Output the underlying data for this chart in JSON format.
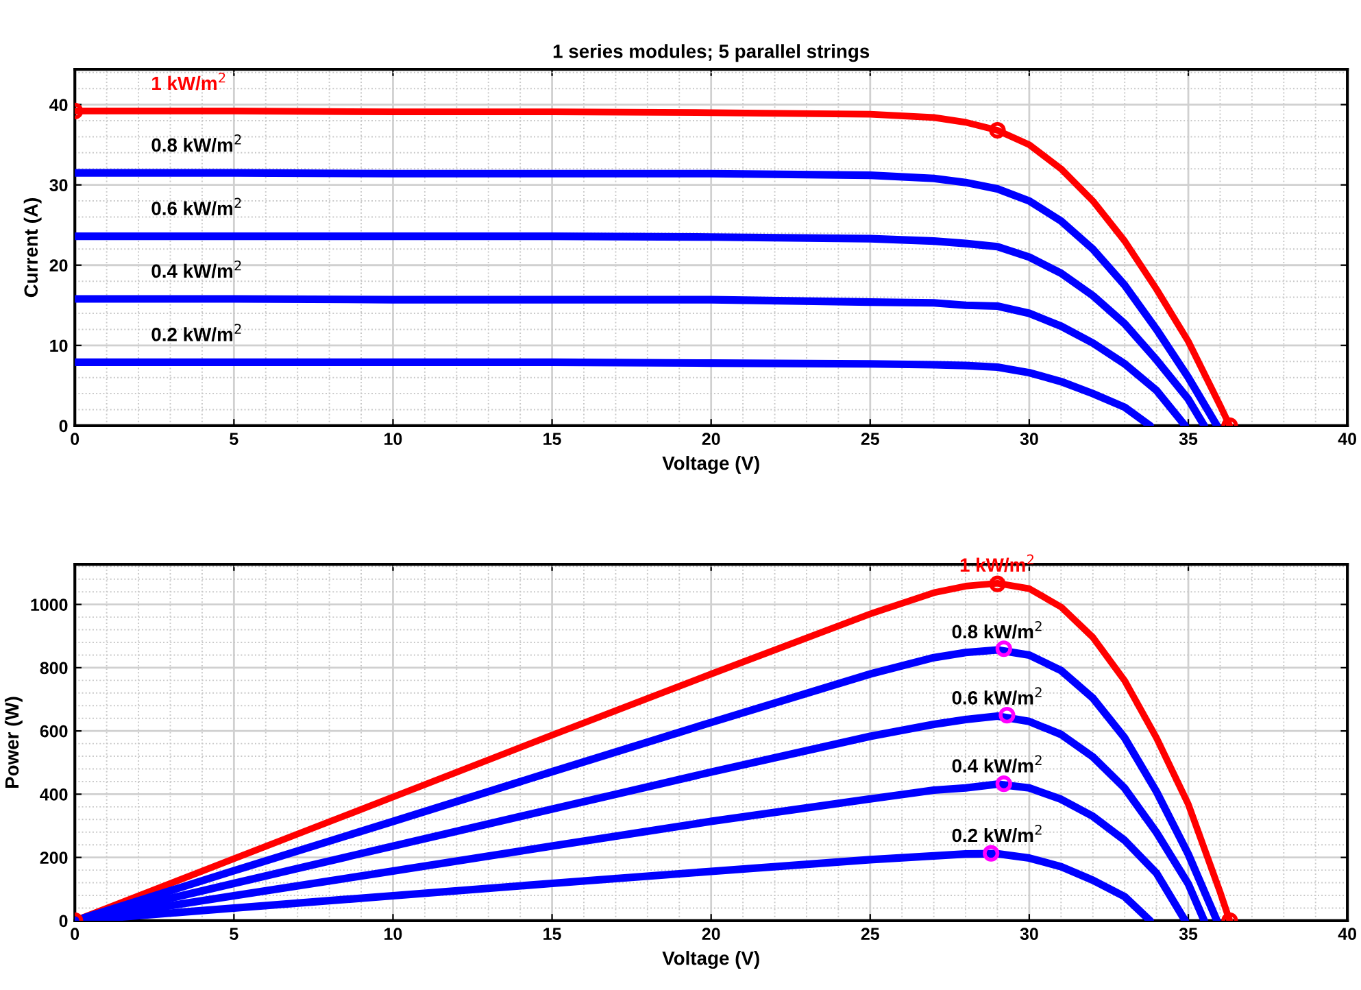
{
  "chart_data": [
    {
      "type": "line",
      "title": "1 series modules; 5 parallel strings",
      "xlabel": "Voltage (V)",
      "ylabel": "Current (A)",
      "xlim": [
        0,
        40
      ],
      "ylim": [
        0,
        44.4
      ],
      "xticks": [
        0,
        5,
        10,
        15,
        20,
        25,
        30,
        35,
        40
      ],
      "yticks": [
        0,
        10,
        20,
        30,
        40
      ],
      "grid": true,
      "legend": false,
      "series": [
        {
          "name": "1 kW/m$^{2}$",
          "color": "#ff0000",
          "x": [
            0,
            5,
            10,
            15,
            20,
            25,
            27,
            28,
            29,
            30,
            31,
            32,
            33,
            34,
            35,
            36,
            36.3
          ],
          "values": [
            39.2,
            39.2,
            39.1,
            39.1,
            39.0,
            38.8,
            38.4,
            37.8,
            36.8,
            35.0,
            32.0,
            28.0,
            23.0,
            17.0,
            10.5,
            2.5,
            0
          ]
        },
        {
          "name": "0.8 kW/m$^{2}$",
          "color": "#0000ff",
          "x": [
            0,
            5,
            10,
            15,
            20,
            25,
            27,
            28,
            29,
            30,
            31,
            32,
            33,
            34,
            35,
            35.9
          ],
          "values": [
            31.5,
            31.5,
            31.4,
            31.4,
            31.4,
            31.2,
            30.8,
            30.3,
            29.5,
            28.0,
            25.5,
            22.0,
            17.5,
            12.0,
            6.0,
            0
          ]
        },
        {
          "name": "0.6 kW/m$^{2}$",
          "color": "#0000ff",
          "x": [
            0,
            5,
            10,
            15,
            20,
            25,
            27,
            28,
            29,
            30,
            31,
            32,
            33,
            34,
            35,
            35.5
          ],
          "values": [
            23.6,
            23.6,
            23.6,
            23.6,
            23.5,
            23.3,
            23.0,
            22.7,
            22.3,
            21.0,
            19.0,
            16.2,
            12.7,
            8.2,
            3.3,
            0
          ]
        },
        {
          "name": "0.4 kW/m$^{2}$",
          "color": "#0000ff",
          "x": [
            0,
            5,
            10,
            15,
            20,
            25,
            27,
            28,
            29,
            30,
            31,
            32,
            33,
            34,
            34.9
          ],
          "values": [
            15.8,
            15.8,
            15.7,
            15.7,
            15.7,
            15.4,
            15.3,
            15.0,
            14.9,
            14.0,
            12.4,
            10.3,
            7.7,
            4.4,
            0
          ]
        },
        {
          "name": "0.2 kW/m$^{2}$",
          "color": "#0000ff",
          "x": [
            0,
            5,
            10,
            15,
            20,
            25,
            27,
            28,
            29,
            30,
            31,
            32,
            33,
            33.8
          ],
          "values": [
            7.9,
            7.9,
            7.9,
            7.9,
            7.8,
            7.7,
            7.6,
            7.5,
            7.3,
            6.6,
            5.5,
            4.0,
            2.3,
            0
          ]
        },
        {
          "type": "scatter",
          "marker": "circle",
          "color": "#ff0000",
          "x": [
            0,
            29,
            36.3
          ],
          "values": [
            39.2,
            36.8,
            0
          ]
        }
      ]
    },
    {
      "type": "line",
      "xlabel": "Voltage (V)",
      "ylabel": "Power (W)",
      "xlim": [
        0,
        40
      ],
      "ylim": [
        0,
        1127
      ],
      "xticks": [
        0,
        5,
        10,
        15,
        20,
        25,
        30,
        35,
        40
      ],
      "yticks": [
        0,
        200,
        400,
        600,
        800,
        1000
      ],
      "grid": true,
      "legend": false,
      "series": [
        {
          "name": "1 kW/m$^{2}$",
          "color": "#ff0000",
          "x": [
            0,
            5,
            10,
            15,
            20,
            25,
            27,
            28,
            29,
            30,
            31,
            32,
            33,
            34,
            35,
            36,
            36.3
          ],
          "values": [
            0,
            196,
            391,
            587,
            780,
            970,
            1037,
            1058,
            1067,
            1050,
            992,
            896,
            759,
            578,
            368,
            90,
            0
          ]
        },
        {
          "name": "0.8 kW/m$^{2}$",
          "color": "#0000ff",
          "x": [
            0,
            5,
            10,
            15,
            20,
            25,
            27,
            28,
            29,
            30,
            31,
            32,
            33,
            34,
            35,
            35.9
          ],
          "values": [
            0,
            158,
            314,
            471,
            627,
            780,
            832,
            848,
            856,
            840,
            791,
            704,
            578,
            408,
            210,
            0
          ]
        },
        {
          "name": "0.6 kW/m$^{2}$",
          "color": "#0000ff",
          "x": [
            0,
            5,
            10,
            15,
            20,
            25,
            27,
            28,
            29,
            30,
            31,
            32,
            33,
            34,
            35,
            35.5
          ],
          "values": [
            0,
            118,
            236,
            353,
            470,
            583,
            621,
            636,
            647,
            630,
            589,
            518,
            419,
            279,
            116,
            0
          ]
        },
        {
          "name": "0.4 kW/m$^{2}$",
          "color": "#0000ff",
          "x": [
            0,
            5,
            10,
            15,
            20,
            25,
            27,
            28,
            29,
            30,
            31,
            32,
            33,
            34,
            34.9
          ],
          "values": [
            0,
            79,
            157,
            236,
            314,
            385,
            413,
            420,
            432,
            420,
            384,
            330,
            254,
            150,
            0
          ]
        },
        {
          "name": "0.2 kW/m$^{2}$",
          "color": "#0000ff",
          "x": [
            0,
            5,
            10,
            15,
            20,
            25,
            27,
            28,
            29,
            30,
            31,
            32,
            33,
            33.8
          ],
          "values": [
            0,
            40,
            79,
            118,
            156,
            193,
            205,
            211,
            212,
            198,
            171,
            128,
            76,
            0
          ]
        },
        {
          "type": "scatter",
          "marker": "circle",
          "color": "#ff0000",
          "x": [
            0,
            29,
            36.3
          ],
          "values": [
            0,
            1065,
            0
          ]
        },
        {
          "type": "scatter",
          "marker": "circle",
          "color": "#ff00ff",
          "x": [
            29.2,
            29.3,
            29.2,
            28.8
          ],
          "values": [
            860,
            650,
            433,
            213
          ]
        }
      ]
    }
  ]
}
